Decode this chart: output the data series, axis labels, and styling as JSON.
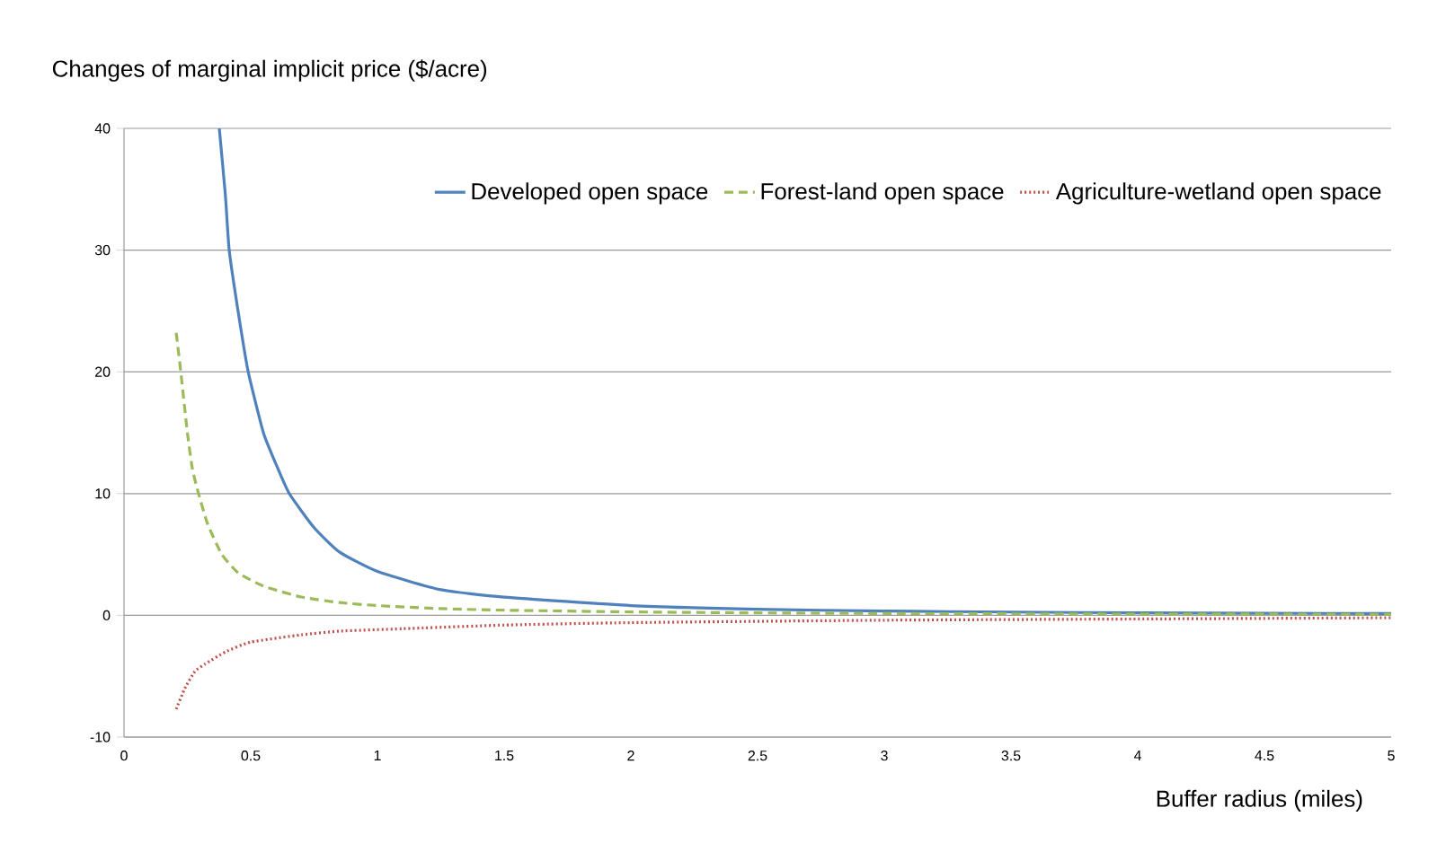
{
  "chart_data": {
    "type": "line",
    "ylabel": "Changes of marginal implicit price ($/acre)",
    "xlabel": "Buffer radius (miles)",
    "xlim": [
      0,
      5
    ],
    "xticks": [
      0,
      0.5,
      1,
      1.5,
      2,
      2.5,
      3,
      3.5,
      4,
      4.5,
      5
    ],
    "ylim": [
      -10,
      40
    ],
    "yticks": [
      -10,
      0,
      10,
      20,
      30,
      40
    ],
    "grid": "y",
    "legend": "top right",
    "marker": "none",
    "series": [
      {
        "name": "Developed open space",
        "color": "#4f81bd",
        "line_style": "solid",
        "x": [
          0.376,
          0.4,
          0.415,
          0.45,
          0.49,
          0.55,
          0.6,
          0.652,
          0.75,
          0.85,
          1,
          1.25,
          1.5,
          2,
          2.5,
          3,
          3.5,
          4,
          4.5,
          5
        ],
        "values": [
          40,
          34.5,
          30,
          25,
          20,
          15,
          12.4,
          10,
          7.2,
          5.2,
          3.6,
          2.1,
          1.5,
          0.8,
          0.5,
          0.35,
          0.27,
          0.2,
          0.17,
          0.15
        ]
      },
      {
        "name": "Forest-land open space",
        "color": "#9bbb59",
        "line_style": "dashed",
        "x": [
          0.206,
          0.224,
          0.25,
          0.27,
          0.294,
          0.33,
          0.386,
          0.45,
          0.55,
          0.7,
          0.85,
          1,
          1.25,
          1.5,
          2,
          2.5,
          3,
          4,
          5
        ],
        "values": [
          23.2,
          20,
          15,
          12,
          10,
          7.5,
          5,
          3.5,
          2.4,
          1.5,
          1.05,
          0.8,
          0.55,
          0.42,
          0.28,
          0.2,
          0.15,
          0.1,
          0.08
        ]
      },
      {
        "name": "Agriculture-wetland open space",
        "color": "#c0504d",
        "line_style": "dotted",
        "x": [
          0.206,
          0.24,
          0.28,
          0.32,
          0.4,
          0.5,
          0.7,
          0.85,
          1.1,
          1.5,
          2,
          3,
          4,
          5
        ],
        "values": [
          -7.7,
          -6,
          -4.6,
          -4.0,
          -3.0,
          -2.2,
          -1.6,
          -1.3,
          -1.1,
          -0.8,
          -0.6,
          -0.4,
          -0.3,
          -0.2
        ]
      }
    ]
  }
}
